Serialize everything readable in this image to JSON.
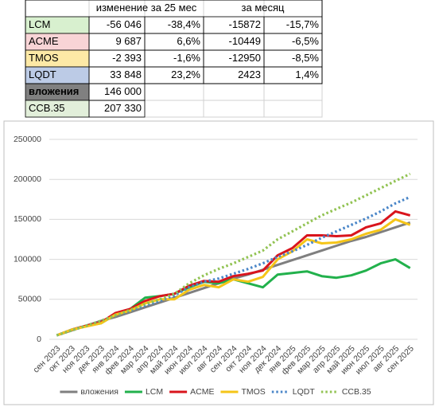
{
  "table": {
    "headers": [
      "изменение за 25 мес",
      "за месяц"
    ],
    "rows": [
      {
        "label": "LCM",
        "color": "#d8f0cf",
        "cells": [
          "-56 046",
          "-38,4%",
          "-15872",
          "-15,7%"
        ]
      },
      {
        "label": "ACME",
        "color": "#f8d4d6",
        "cells": [
          "9 687",
          "6,6%",
          "-10449",
          "-6,5%"
        ]
      },
      {
        "label": "TMOS",
        "color": "#fde9a6",
        "cells": [
          "-2 393",
          "-1,6%",
          "-12950",
          "-8,5%"
        ]
      },
      {
        "label": "LQDT",
        "color": "#bccbe6",
        "cells": [
          "33 848",
          "23,2%",
          "2423",
          "1,4%"
        ]
      },
      {
        "label": "вложения",
        "color": "#808080",
        "cells": [
          "146 000"
        ]
      },
      {
        "label": "ССВ.35",
        "color": "#e2efda",
        "cells": [
          "207 330"
        ]
      }
    ]
  },
  "chart_data": {
    "type": "line",
    "categories": [
      "сен 2023",
      "окт 2023",
      "ноя 2023",
      "дек 2023",
      "янв 2024",
      "фев 2024",
      "мар 2024",
      "апр 2024",
      "май 2024",
      "июн 2024",
      "июл 2024",
      "авг 2024",
      "сен 2024",
      "окт 2024",
      "ноя 2024",
      "дек 2024",
      "янв 2025",
      "фев 2025",
      "мар 2025",
      "апр 2025",
      "май 2025",
      "июн 2025",
      "июл 2025",
      "авг 2025",
      "сен 2025"
    ],
    "ylim": [
      0,
      250000
    ],
    "yticks": [
      0,
      50000,
      100000,
      150000,
      200000,
      250000
    ],
    "grid": true,
    "legend": "bottom",
    "series": [
      {
        "name": "вложения",
        "color": "#7f7f7f",
        "style": "solid",
        "values": [
          5000,
          11000,
          17000,
          23000,
          28000,
          34000,
          40000,
          46000,
          52000,
          58000,
          64000,
          70000,
          76000,
          81000,
          87000,
          93000,
          99000,
          105000,
          111000,
          117000,
          123000,
          128000,
          134000,
          140000,
          146000
        ]
      },
      {
        "name": "LCM",
        "color": "#22b14c",
        "style": "solid",
        "values": [
          5000,
          12000,
          17000,
          20000,
          31000,
          38000,
          52000,
          54000,
          57000,
          65000,
          72000,
          70000,
          75000,
          70000,
          65000,
          81000,
          83000,
          85000,
          79000,
          77000,
          80000,
          86000,
          95000,
          100000,
          89000
        ]
      },
      {
        "name": "ACME",
        "color": "#d9141c",
        "style": "solid",
        "values": [
          5000,
          12000,
          17000,
          21000,
          33000,
          38000,
          48000,
          54000,
          57000,
          67000,
          73000,
          72000,
          79000,
          82000,
          86000,
          105000,
          114000,
          130000,
          130000,
          129000,
          130000,
          140000,
          145000,
          160000,
          155000
        ]
      },
      {
        "name": "TMOS",
        "color": "#f5c518",
        "style": "solid",
        "values": [
          5000,
          12000,
          16000,
          20000,
          31000,
          36000,
          45000,
          50000,
          50000,
          62000,
          68000,
          65000,
          75000,
          72000,
          78000,
          100000,
          110000,
          125000,
          120000,
          121000,
          125000,
          132000,
          137000,
          150000,
          143000
        ]
      },
      {
        "name": "LQDT",
        "color": "#4a86c8",
        "style": "dotted",
        "values": [
          5000,
          11000,
          17000,
          23000,
          30000,
          36000,
          42000,
          48000,
          55000,
          65000,
          72000,
          76000,
          82000,
          88000,
          95000,
          103000,
          110000,
          118000,
          127000,
          135000,
          143000,
          151000,
          160000,
          170000,
          178000
        ]
      },
      {
        "name": "ССВ.35",
        "color": "#92c353",
        "style": "dotted",
        "values": [
          5000,
          11000,
          17000,
          23000,
          30000,
          37000,
          44000,
          50000,
          57000,
          70000,
          80000,
          88000,
          95000,
          103000,
          111000,
          125000,
          135000,
          145000,
          155000,
          163000,
          171000,
          180000,
          189000,
          198000,
          207000
        ]
      }
    ]
  }
}
